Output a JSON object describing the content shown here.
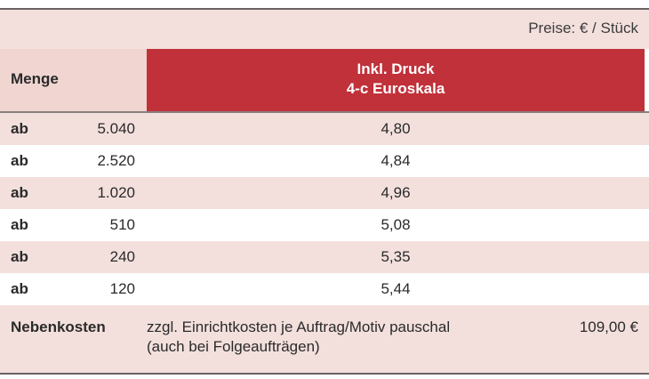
{
  "caption": "Preise: € / Stück",
  "header": {
    "quantity_label": "Menge",
    "price_line1": "Inkl. Druck",
    "price_line2": "4-c Euroskala"
  },
  "rows": [
    {
      "prefix": "ab",
      "quantity": "5.040",
      "price": "4,80"
    },
    {
      "prefix": "ab",
      "quantity": "2.520",
      "price": "4,84"
    },
    {
      "prefix": "ab",
      "quantity": "1.020",
      "price": "4,96"
    },
    {
      "prefix": "ab",
      "quantity": "510",
      "price": "5,08"
    },
    {
      "prefix": "ab",
      "quantity": "240",
      "price": "5,35"
    },
    {
      "prefix": "ab",
      "quantity": "120",
      "price": "5,44"
    }
  ],
  "extra_costs": {
    "label": "Nebenkosten",
    "description_line1": "zzgl. Einrichtkosten je Auftrag/Motiv pauschal",
    "description_line2": "(auch bei Folgeaufträgen)",
    "amount": "109,00 €"
  },
  "colors": {
    "accent_red": "#c0313a",
    "pink_band": "#f3e0dd"
  }
}
